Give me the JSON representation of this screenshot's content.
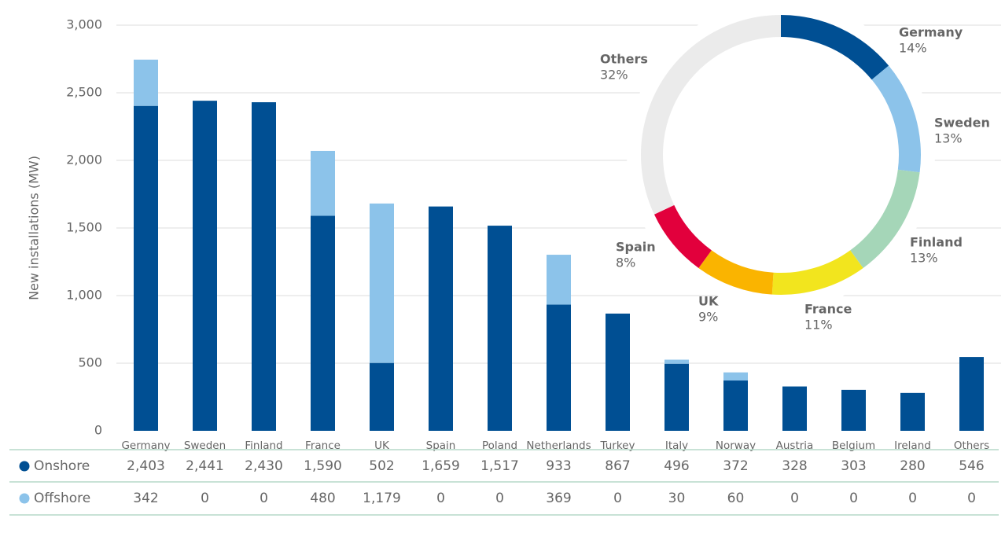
{
  "chart_data": [
    {
      "type": "bar",
      "stacked": true,
      "y_label": "New installations (MW)",
      "categories": [
        "Germany",
        "Sweden",
        "Finland",
        "France",
        "UK",
        "Spain",
        "Poland",
        "Netherlands",
        "Turkey",
        "Italy",
        "Norway",
        "Austria",
        "Belgium",
        "Ireland",
        "Others"
      ],
      "series": [
        {
          "name": "Onshore",
          "color": "#004f93",
          "values": [
            2403,
            2441,
            2430,
            1590,
            502,
            1659,
            1517,
            933,
            867,
            496,
            372,
            328,
            303,
            280,
            546
          ],
          "value_labels": [
            "2,403",
            "2,441",
            "2,430",
            "1,590",
            "502",
            "1,659",
            "1,517",
            "933",
            "867",
            "496",
            "372",
            "328",
            "303",
            "280",
            "546"
          ]
        },
        {
          "name": "Offshore",
          "color": "#8cc3ea",
          "values": [
            342,
            0,
            0,
            480,
            1179,
            0,
            0,
            369,
            0,
            30,
            60,
            0,
            0,
            0,
            0
          ],
          "value_labels": [
            "342",
            "0",
            "0",
            "480",
            "1,179",
            "0",
            "0",
            "369",
            "0",
            "30",
            "60",
            "0",
            "0",
            "0",
            "0"
          ]
        }
      ],
      "ylim": [
        0,
        3000
      ],
      "yticks": [
        0,
        500,
        {
          "value": 1000,
          "label": "1,000"
        },
        {
          "value": 1500,
          "label": "1,500"
        },
        {
          "value": 2000,
          "label": "2,000"
        },
        {
          "value": 2500,
          "label": "2,500"
        },
        {
          "value": 3000,
          "label": "3,000"
        }
      ],
      "grid": true
    },
    {
      "type": "pie",
      "donut": true,
      "categories": [
        "Germany",
        "Sweden",
        "Finland",
        "France",
        "UK",
        "Spain",
        "Others"
      ],
      "values": [
        14,
        13,
        13,
        11,
        9,
        8,
        32
      ],
      "value_labels": [
        "14%",
        "13%",
        "13%",
        "11%",
        "9%",
        "8%",
        "32%"
      ],
      "colors": [
        "#004f93",
        "#8cc3ea",
        "#a5d6b8",
        "#f2e51e",
        "#fab400",
        "#e2003c",
        "#ebebeb"
      ]
    }
  ]
}
